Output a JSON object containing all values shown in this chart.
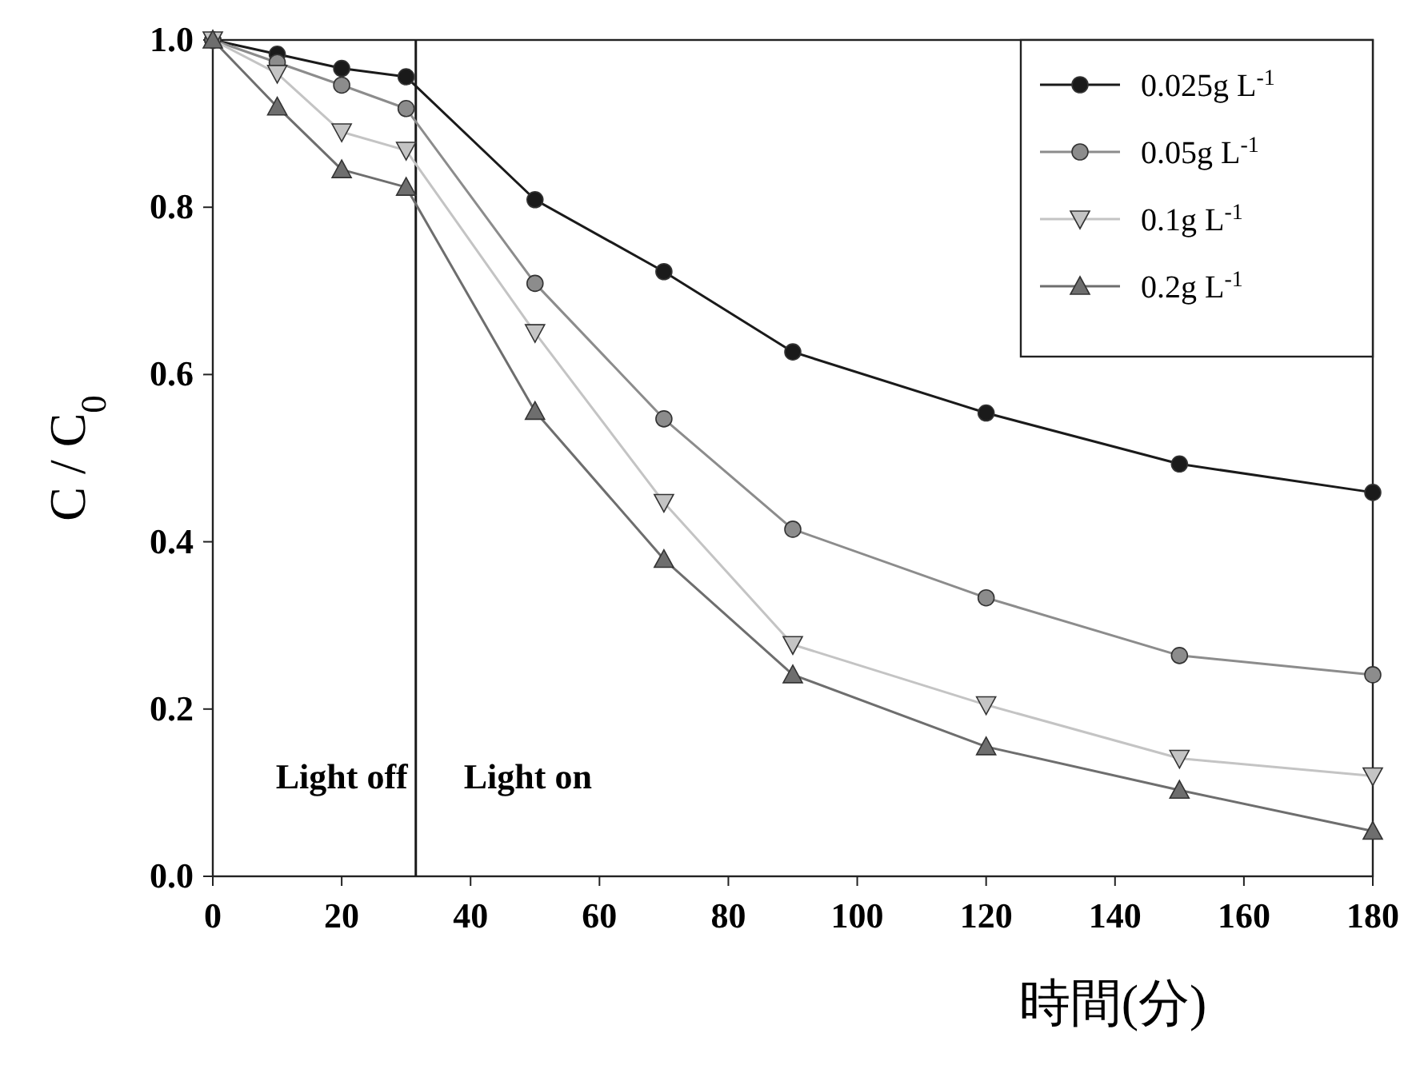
{
  "chart_data": {
    "type": "line",
    "xlabel": "時間(分)",
    "ylabel": "C / C$_{0}$",
    "x": [
      0,
      10,
      20,
      30,
      50,
      70,
      90,
      120,
      150,
      180
    ],
    "series": [
      {
        "name": "0.025g L$^{-1}$",
        "color": "#1a1a1a",
        "marker": "circle",
        "values": [
          1.0,
          0.983,
          0.966,
          0.956,
          0.809,
          0.723,
          0.627,
          0.554,
          0.493,
          0.459
        ]
      },
      {
        "name": "0.05g L$^{-1}$",
        "color": "#8c8c8c",
        "marker": "circle",
        "values": [
          1.0,
          0.973,
          0.946,
          0.918,
          0.709,
          0.547,
          0.415,
          0.333,
          0.264,
          0.241
        ]
      },
      {
        "name": "0.1g L$^{-1}$",
        "color": "#c4c4c4",
        "marker": "triangle-down",
        "values": [
          1.0,
          0.96,
          0.89,
          0.868,
          0.65,
          0.447,
          0.277,
          0.205,
          0.141,
          0.12
        ]
      },
      {
        "name": "0.2g L$^{-1}$",
        "color": "#6e6e6e",
        "marker": "triangle",
        "values": [
          1.0,
          0.92,
          0.845,
          0.824,
          0.556,
          0.379,
          0.241,
          0.155,
          0.103,
          0.054
        ]
      }
    ],
    "xlim": [
      0,
      180
    ],
    "xticks": [
      0,
      20,
      40,
      60,
      80,
      100,
      120,
      140,
      160,
      180
    ],
    "ylim": [
      0,
      1.0
    ],
    "yticks": [
      {
        "value": 0,
        "label": "0.0"
      },
      0.2,
      0.4,
      0.6,
      0.8,
      {
        "value": 1,
        "label": "1.0"
      }
    ],
    "ref_lines": [
      {
        "axis": "x",
        "value": 31.5,
        "color": "#1a1a1a"
      }
    ],
    "annotations": [
      "Light off",
      "Light on"
    ],
    "legend": "top right",
    "grid": false
  }
}
